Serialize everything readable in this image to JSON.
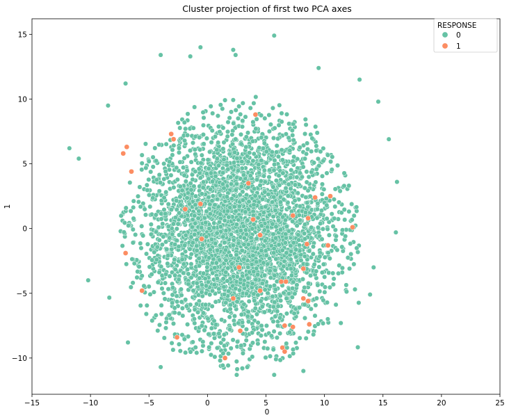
{
  "chart_data": {
    "type": "scatter",
    "title": "Cluster projection of first two PCA axes",
    "xlabel": "0",
    "ylabel": "1",
    "xlim": [
      -15,
      25
    ],
    "ylim": [
      -12.8,
      16.2
    ],
    "xticks": [
      -15,
      -10,
      -5,
      0,
      5,
      10,
      15,
      20,
      25
    ],
    "yticks": [
      -10,
      -5,
      0,
      5,
      10,
      15
    ],
    "grid": false,
    "legend": {
      "title": "RESPONSE",
      "placement": "top-right",
      "entries": [
        "0",
        "1"
      ]
    },
    "colors": {
      "0": "#66c2a5",
      "1": "#fc8d62"
    },
    "cluster_0": {
      "name": "0",
      "center": [
        2.8,
        -0.3
      ],
      "spread": [
        5.4,
        4.5
      ],
      "approx_points": 5000,
      "x_range": [
        -11.8,
        16.2
      ],
      "y_range": [
        -11.5,
        14.9
      ]
    },
    "series": [
      {
        "name": "0",
        "outlier_points": [
          [
            5.7,
            14.9
          ],
          [
            2.2,
            13.8
          ],
          [
            -0.6,
            14.0
          ],
          [
            -4.0,
            13.4
          ],
          [
            2.4,
            13.4
          ],
          [
            -11.8,
            6.2
          ],
          [
            16.2,
            3.6
          ],
          [
            16.1,
            -0.3
          ],
          [
            15.5,
            6.9
          ],
          [
            14.6,
            9.8
          ],
          [
            13.0,
            11.5
          ],
          [
            9.5,
            12.4
          ],
          [
            -7.0,
            11.2
          ],
          [
            -8.5,
            9.5
          ],
          [
            -11.0,
            5.4
          ],
          [
            -10.2,
            -4.0
          ],
          [
            -4.0,
            -10.7
          ],
          [
            2.5,
            -11.3
          ],
          [
            5.7,
            -11.3
          ],
          [
            -6.8,
            -8.8
          ],
          [
            11.4,
            -7.3
          ],
          [
            13.9,
            -5.1
          ],
          [
            14.2,
            -3.0
          ],
          [
            8.2,
            -11.0
          ]
        ]
      },
      {
        "name": "1",
        "points": [
          [
            4.1,
            8.8
          ],
          [
            -3.1,
            7.3
          ],
          [
            -2.9,
            6.9
          ],
          [
            -6.9,
            6.3
          ],
          [
            -7.2,
            5.8
          ],
          [
            -6.5,
            4.4
          ],
          [
            3.5,
            3.5
          ],
          [
            -0.6,
            1.9
          ],
          [
            9.2,
            2.4
          ],
          [
            10.5,
            2.5
          ],
          [
            3.9,
            0.7
          ],
          [
            7.3,
            1.0
          ],
          [
            12.4,
            0.1
          ],
          [
            8.6,
            0.8
          ],
          [
            -0.5,
            -0.8
          ],
          [
            4.5,
            -0.5
          ],
          [
            -7.0,
            -1.9
          ],
          [
            8.5,
            -1.2
          ],
          [
            10.3,
            -1.3
          ],
          [
            2.7,
            -3.0
          ],
          [
            8.2,
            -3.1
          ],
          [
            6.7,
            -4.1
          ],
          [
            6.3,
            -4.1
          ],
          [
            -5.6,
            -4.8
          ],
          [
            4.5,
            -4.8
          ],
          [
            2.2,
            -5.4
          ],
          [
            8.2,
            -5.4
          ],
          [
            8.6,
            -5.6
          ],
          [
            2.8,
            -7.9
          ],
          [
            6.6,
            -7.5
          ],
          [
            7.3,
            -7.6
          ],
          [
            -2.6,
            -8.4
          ],
          [
            6.4,
            -9.2
          ],
          [
            6.6,
            -9.5
          ],
          [
            1.5,
            -10.0
          ],
          [
            8.7,
            -7.4
          ],
          [
            -1.9,
            1.5
          ]
        ]
      }
    ]
  }
}
